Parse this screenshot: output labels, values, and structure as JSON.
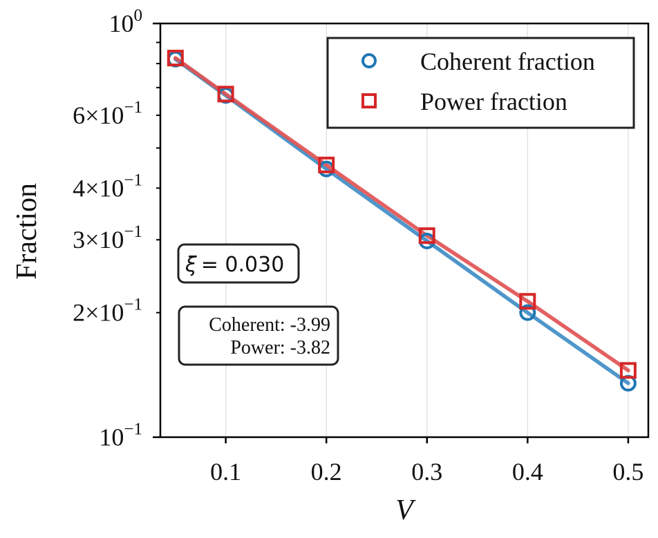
{
  "chart_data": {
    "type": "line",
    "xlabel": "V",
    "ylabel": "Fraction",
    "yscale": "log",
    "xlim": [
      0.035,
      0.52
    ],
    "ylim": [
      0.1,
      1.0
    ],
    "x_ticks": [
      0.1,
      0.2,
      0.3,
      0.4,
      0.5
    ],
    "x_tick_labels": [
      "0.1",
      "0.2",
      "0.3",
      "0.4",
      "0.5"
    ],
    "y_major_ticks": [
      {
        "value": 1.0,
        "mantissa": "",
        "base": "10",
        "exponent": "0"
      },
      {
        "value": 0.1,
        "mantissa": "",
        "base": "10",
        "exponent": "−1"
      }
    ],
    "y_minor_labeled_ticks": [
      {
        "value": 0.6,
        "mantissa": "6",
        "base": "10",
        "exponent": "−1"
      },
      {
        "value": 0.4,
        "mantissa": "4",
        "base": "10",
        "exponent": "−1"
      },
      {
        "value": 0.3,
        "mantissa": "3",
        "base": "10",
        "exponent": "−1"
      },
      {
        "value": 0.2,
        "mantissa": "2",
        "base": "10",
        "exponent": "−1"
      }
    ],
    "y_minor_unlabeled_ticks": [
      0.9,
      0.8,
      0.7,
      0.5
    ],
    "grid": "x-only",
    "legend_position": "top-right",
    "series": [
      {
        "name": "Coherent fraction",
        "marker": "circle",
        "color": "#1f77b4",
        "line_color": "#3c8bc4",
        "x": [
          0.05,
          0.1,
          0.2,
          0.3,
          0.4,
          0.5
        ],
        "y": [
          0.82,
          0.67,
          0.445,
          0.298,
          0.2,
          0.135
        ]
      },
      {
        "name": "Power fraction",
        "marker": "square",
        "color": "#d62728",
        "line_color": "#e05050",
        "x": [
          0.05,
          0.1,
          0.2,
          0.3,
          0.4,
          0.5
        ],
        "y": [
          0.825,
          0.675,
          0.455,
          0.307,
          0.213,
          0.145
        ]
      }
    ],
    "annotations": {
      "xi_symbol": "ξ",
      "xi_value": "= 0.030",
      "slope_lines": [
        "Coherent: -3.99",
        "Power: -3.82"
      ]
    }
  }
}
